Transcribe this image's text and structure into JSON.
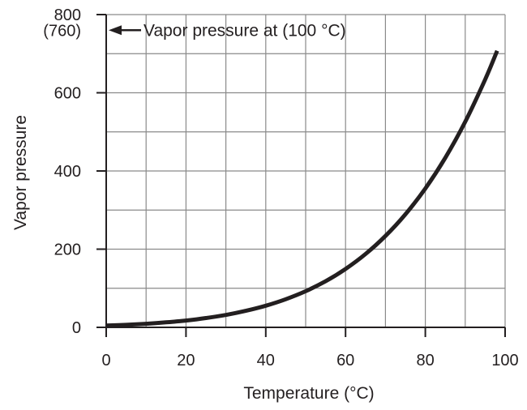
{
  "chart_data": {
    "type": "line",
    "title": "",
    "xlabel": "Temperature (°C)",
    "ylabel": "Vapor pressure",
    "xlim": [
      0,
      100
    ],
    "ylim": [
      0,
      800
    ],
    "x_ticks": [
      0,
      20,
      40,
      60,
      80,
      100
    ],
    "x_tick_labels": [
      "0",
      "20",
      "40",
      "60",
      "80",
      "100"
    ],
    "y_ticks": [
      0,
      200,
      400,
      600,
      800
    ],
    "y_tick_labels": [
      "0",
      "200",
      "400",
      "600",
      "800"
    ],
    "x_minor_grid_step": 10,
    "y_minor_grid_step": 100,
    "grid": true,
    "series": [
      {
        "x": [
          0,
          5,
          10,
          15,
          20,
          25,
          30,
          35,
          40,
          45,
          50,
          55,
          60,
          65,
          70,
          75,
          80,
          85,
          90,
          95,
          98
        ],
        "y": [
          4.6,
          6.5,
          9.2,
          12.8,
          17.5,
          23.8,
          31.8,
          42.2,
          55.3,
          71.9,
          92.5,
          118.0,
          149.4,
          187.5,
          233.7,
          289.1,
          355.1,
          433.6,
          525.8,
          633.9,
          707.3
        ]
      }
    ],
    "annotations": [
      {
        "secondary_label": "(760)",
        "text": "Vapor pressure at (100 °C)",
        "at_y": 760
      }
    ],
    "colors": {
      "curve": "#231f20",
      "grid": "#8a8a8a",
      "axis": "#231f20"
    }
  }
}
